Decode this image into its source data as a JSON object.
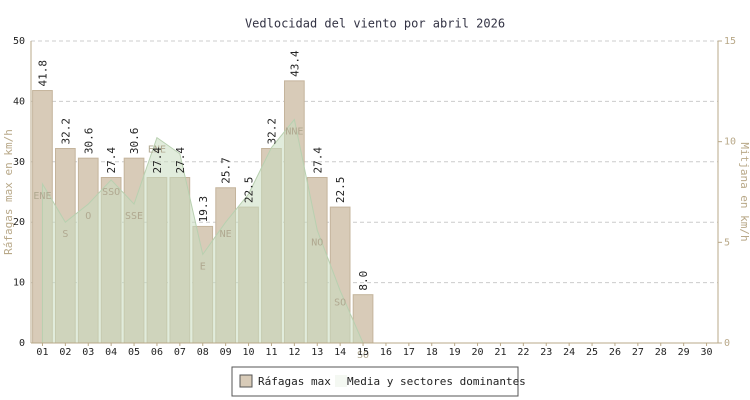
{
  "chart_data": {
    "type": "bar",
    "title": "Vedlocidad del viento por abril 2026",
    "y_label": "Ráfagas max en km/h",
    "y2_label": "Mitjana en km/h",
    "categories": [
      "01",
      "02",
      "03",
      "04",
      "05",
      "06",
      "07",
      "08",
      "09",
      "10",
      "11",
      "12",
      "13",
      "14",
      "15",
      "16",
      "17",
      "18",
      "19",
      "20",
      "21",
      "22",
      "23",
      "24",
      "25",
      "26",
      "27",
      "28",
      "29",
      "30"
    ],
    "ylim": [
      0,
      50
    ],
    "yticks": [
      0,
      10,
      20,
      30,
      40,
      50
    ],
    "y2lim": [
      0,
      15
    ],
    "y2ticks": [
      0,
      5,
      10,
      15
    ],
    "grid": true,
    "series": [
      {
        "name": "Ráfagas max",
        "color": "#d8cbb8",
        "values": [
          41.8,
          32.2,
          30.6,
          27.4,
          30.6,
          27.4,
          27.4,
          19.3,
          25.7,
          22.5,
          32.2,
          43.4,
          27.4,
          22.5,
          8.0,
          null,
          null,
          null,
          null,
          null,
          null,
          null,
          null,
          null,
          null,
          null,
          null,
          null,
          null,
          null
        ],
        "value_labels": [
          "41.8",
          "32.2",
          "30.6",
          "27.4",
          "30.6",
          "27.4",
          "27.4",
          "19.3",
          "25.7",
          "22.5",
          "32.2",
          "43.4",
          "27.4",
          "22.5",
          "8.0",
          null,
          null,
          null,
          null,
          null,
          null,
          null,
          null,
          null,
          null,
          null,
          null,
          null,
          null,
          null
        ]
      },
      {
        "name": "Media y sectores dominantes",
        "color": "#c8dcc0",
        "axis": "y2",
        "values": [
          7.9,
          6.0,
          6.9,
          8.1,
          6.9,
          10.2,
          9.4,
          4.4,
          6.0,
          7.4,
          9.7,
          11.1,
          5.6,
          2.6,
          0,
          null,
          null,
          null,
          null,
          null,
          null,
          null,
          null,
          null,
          null,
          null,
          null,
          null,
          null,
          null
        ],
        "labels": [
          "ENE",
          "S",
          "O",
          "SSO",
          "SSE",
          "ENE",
          null,
          "E",
          "NE",
          null,
          null,
          "NNE",
          "NO",
          "SO",
          "SO",
          null,
          null,
          null,
          null,
          null,
          null,
          null,
          null,
          null,
          null,
          null,
          null,
          null,
          null,
          null
        ]
      }
    ]
  }
}
